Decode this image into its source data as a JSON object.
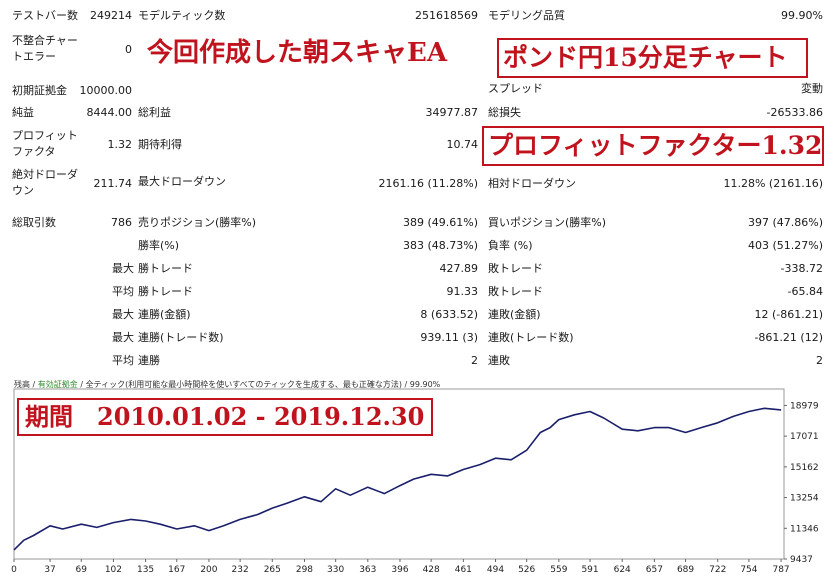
{
  "stats": {
    "bars_label": "テストバー数",
    "bars_value": "249214",
    "ticks_label": "モデルティック数",
    "ticks_value": "251618569",
    "quality_label": "モデリング品質",
    "quality_value": "99.90%",
    "mismatch_label_1": "不整合チャー",
    "mismatch_label_2": "トエラー",
    "mismatch_value": "0",
    "deposit_label": "初期証拠金",
    "deposit_value": "10000.00",
    "spread_label": "スプレッド",
    "spread_value": "変動",
    "net_label": "純益",
    "net_value": "8444.00",
    "gross_profit_label": "総利益",
    "gross_profit_value": "34977.87",
    "gross_loss_label": "総損失",
    "gross_loss_value": "-26533.86",
    "pf_label_1": "プロフィット",
    "pf_label_2": "ファクタ",
    "pf_value": "1.32",
    "expected_label": "期待利得",
    "expected_value": "10.74",
    "abs_dd_label_1": "絶対ドローダ",
    "abs_dd_label_2": "ウン",
    "abs_dd_value": "211.74",
    "max_dd_label": "最大ドローダウン",
    "max_dd_value": "2161.16 (11.28%)",
    "rel_dd_label": "相対ドローダウン",
    "rel_dd_value": "11.28% (2161.16)",
    "trades_label": "総取引数",
    "trades_value": "786",
    "short_label": "売りポジション(勝率%)",
    "short_value": "389 (49.61%)",
    "long_label": "買いポジション(勝率%)",
    "long_value": "397 (47.86%)",
    "win_rate_label": "勝率(%)",
    "win_rate_value": "383 (48.73%)",
    "loss_rate_label": "負率 (%)",
    "loss_rate_value": "403 (51.27%)",
    "max_label": "最大",
    "avg_label": "平均",
    "max_win_label": "勝トレード",
    "max_win_value": "427.89",
    "max_loss_label": "敗トレード",
    "max_loss_value": "-338.72",
    "avg_win_label": "勝トレード",
    "avg_win_value": "91.33",
    "avg_loss_label": "敗トレード",
    "avg_loss_value": "-65.84",
    "consec_win_amt_label": "連勝(金額)",
    "consec_win_amt_value": "8 (633.52)",
    "consec_loss_amt_label": "連敗(金額)",
    "consec_loss_amt_value": "12 (-861.21)",
    "max_win_trades_label": "連勝(トレード数)",
    "max_win_trades_value": "939.11 (3)",
    "max_loss_trades_label": "連敗(トレード数)",
    "max_loss_trades_value": "-861.21 (12)",
    "avg_consec_win_label": "連勝",
    "avg_consec_win_value": "2",
    "avg_consec_loss_label": "連敗",
    "avg_consec_loss_value": "2"
  },
  "annotations": {
    "ea_title": "今回作成した朝スキャEA",
    "pair_note": "ポンド円15分足チャート",
    "pf_note": "プロフィットファクター1.32",
    "period_note": "期間　2010.01.02 - 2019.12.30"
  },
  "chart_caption": {
    "balance": "残高",
    "slash1": " / ",
    "margin": "有効証拠金",
    "slash2": " / ",
    "model": "全ティック(利用可能な最小時間枠を使いすべてのティックを生成する、最も正確な方法)",
    "slash3": " / ",
    "quality": "99.90%"
  },
  "colors": {
    "line": "#1a1f6b",
    "accent": "#c0131d",
    "margin_text": "#2e8b2e"
  },
  "chart_data": {
    "type": "line",
    "x_ticks": [
      0,
      37,
      69,
      102,
      135,
      167,
      200,
      232,
      265,
      298,
      330,
      363,
      396,
      428,
      461,
      494,
      526,
      559,
      591,
      624,
      657,
      689,
      722,
      754,
      787
    ],
    "y_ticks": [
      9437,
      11346,
      13254,
      15162,
      17071,
      18979
    ],
    "xlim": [
      0,
      790
    ],
    "ylim": [
      9437,
      20000
    ],
    "series": [
      {
        "x": [
          0,
          10,
          20,
          37,
          50,
          69,
          85,
          102,
          120,
          135,
          150,
          167,
          185,
          200,
          215,
          232,
          250,
          265,
          280,
          298,
          315,
          330,
          345,
          363,
          380,
          396,
          410,
          428,
          445,
          461,
          478,
          494,
          510,
          526,
          540,
          550,
          559,
          575,
          591,
          605,
          624,
          640,
          657,
          672,
          689,
          705,
          722,
          738,
          754,
          770,
          787
        ],
        "y": [
          10000,
          10600,
          10900,
          11500,
          11300,
          11600,
          11400,
          11700,
          11900,
          11800,
          11600,
          11300,
          11500,
          11200,
          11500,
          11900,
          12200,
          12600,
          12900,
          13300,
          13000,
          13800,
          13400,
          13900,
          13500,
          14000,
          14400,
          14700,
          14600,
          15000,
          15300,
          15700,
          15600,
          16200,
          17300,
          17600,
          18100,
          18400,
          18600,
          18200,
          17500,
          17400,
          17600,
          17600,
          17300,
          17600,
          17900,
          18300,
          18600,
          18800,
          18700
        ]
      }
    ]
  }
}
